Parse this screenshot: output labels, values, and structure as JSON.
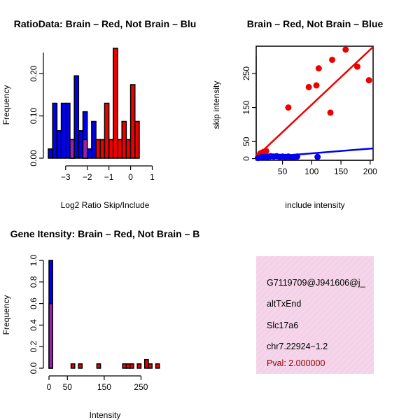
{
  "chart_data": [
    {
      "type": "histogram",
      "title": "RatioData: Brain – Red, Not Brain – Blu",
      "xlabel": "Log2 Ratio Skip/Include",
      "ylabel": "Frequency",
      "xlim": [
        -3.8,
        1.5
      ],
      "ylim": [
        0,
        0.265
      ],
      "xticks": [
        -3,
        -2,
        -1,
        0,
        1
      ],
      "xtick_labels": [
        "−3",
        "−2",
        "−1",
        "0",
        "1"
      ],
      "yticks": [
        0,
        0.1,
        0.2
      ],
      "ytick_labels": [
        "0.00",
        "0.10",
        "0.20"
      ],
      "bin_start": -3.8,
      "bin_width": 0.2,
      "series": [
        {
          "name": "Not Brain",
          "color": "#0000ee",
          "values": [
            0.022,
            0.13,
            0.065,
            0.13,
            0.13,
            0.044,
            0.195,
            0.065,
            0.11,
            0.022,
            0.087,
            0,
            0,
            0,
            0,
            0,
            0,
            0,
            0,
            0,
            0,
            0,
            0,
            0,
            0,
            0
          ]
        },
        {
          "name": "Brain",
          "color": "#ee0000",
          "values": [
            0,
            0,
            0,
            0,
            0,
            0.044,
            0,
            0,
            0.044,
            0,
            0,
            0.044,
            0.044,
            0.13,
            0.044,
            0.26,
            0.044,
            0.087,
            0.044,
            0.174,
            0.087,
            0,
            0,
            0,
            0,
            0
          ]
        }
      ]
    },
    {
      "type": "scatter",
      "title": "Brain – Red, Not Brain – Blue",
      "xlabel": "include intensity",
      "ylabel": "skip intensity",
      "xlim": [
        5,
        205
      ],
      "ylim": [
        -5,
        330
      ],
      "xticks": [
        50,
        100,
        150,
        200
      ],
      "xtick_labels": [
        "50",
        "100",
        "150",
        "200"
      ],
      "yticks": [
        0,
        50,
        150,
        250
      ],
      "ytick_labels": [
        "0",
        "50",
        "150",
        "250"
      ],
      "series": [
        {
          "name": "Brain",
          "color": "#ee0000",
          "points": [
            [
              10,
              10
            ],
            [
              12,
              15
            ],
            [
              15,
              17
            ],
            [
              18,
              20
            ],
            [
              20,
              18
            ],
            [
              22,
              22
            ],
            [
              60,
              150
            ],
            [
              95,
              210
            ],
            [
              108,
              215
            ],
            [
              112,
              265
            ],
            [
              132,
              135
            ],
            [
              135,
              290
            ],
            [
              158,
              320
            ],
            [
              178,
              270
            ],
            [
              198,
              230
            ]
          ],
          "fit": [
            [
              5,
              5
            ],
            [
              205,
              328
            ]
          ]
        },
        {
          "name": "Not Brain",
          "color": "#0000ee",
          "points": [
            [
              8,
              2
            ],
            [
              12,
              3
            ],
            [
              15,
              4
            ],
            [
              18,
              5
            ],
            [
              20,
              3
            ],
            [
              22,
              4
            ],
            [
              25,
              5
            ],
            [
              28,
              6
            ],
            [
              30,
              7
            ],
            [
              35,
              6
            ],
            [
              40,
              7
            ],
            [
              45,
              5
            ],
            [
              50,
              6
            ],
            [
              55,
              5
            ],
            [
              60,
              6
            ],
            [
              65,
              4
            ],
            [
              70,
              5
            ],
            [
              75,
              6
            ],
            [
              110,
              5
            ]
          ],
          "fit": [
            [
              5,
              2
            ],
            [
              205,
              30
            ]
          ]
        }
      ]
    },
    {
      "type": "histogram",
      "title": "Gene Itensity: Brain – Red, Not Brain – B",
      "xlabel": "Intensity",
      "ylabel": "Frequency",
      "xlim": [
        0,
        310
      ],
      "ylim": [
        0,
        1.0
      ],
      "xticks": [
        0,
        50,
        150,
        250
      ],
      "xtick_labels": [
        "0",
        "50",
        "150",
        "250"
      ],
      "yticks": [
        0,
        0.2,
        0.4,
        0.6,
        0.8,
        1.0
      ],
      "ytick_labels": [
        "0.0",
        "0.2",
        "0.4",
        "0.6",
        "0.8",
        "1.0"
      ],
      "bin_start": 0,
      "bin_width": 10,
      "series": [
        {
          "name": "Not Brain",
          "color": "#0000ee",
          "values": [
            1.0,
            0,
            0,
            0,
            0,
            0,
            0,
            0,
            0,
            0,
            0,
            0,
            0,
            0,
            0,
            0,
            0,
            0,
            0,
            0,
            0,
            0,
            0,
            0,
            0,
            0,
            0,
            0,
            0,
            0,
            0
          ]
        },
        {
          "name": "Brain",
          "color": "#ee0000",
          "values": [
            0.6,
            0,
            0,
            0,
            0,
            0,
            0.04,
            0,
            0.04,
            0,
            0,
            0,
            0,
            0.04,
            0,
            0,
            0,
            0,
            0,
            0,
            0.04,
            0.04,
            0.04,
            0,
            0.04,
            0,
            0.08,
            0.04,
            0,
            0.04,
            0
          ]
        }
      ]
    }
  ],
  "info_panel": {
    "background": "#f5d5ea",
    "lines": [
      "G7119709@J941606@j_",
      "altTxEnd",
      "Slc17a6",
      "chr7.22924−1.2"
    ],
    "pval": "Pval: 2.000000"
  }
}
